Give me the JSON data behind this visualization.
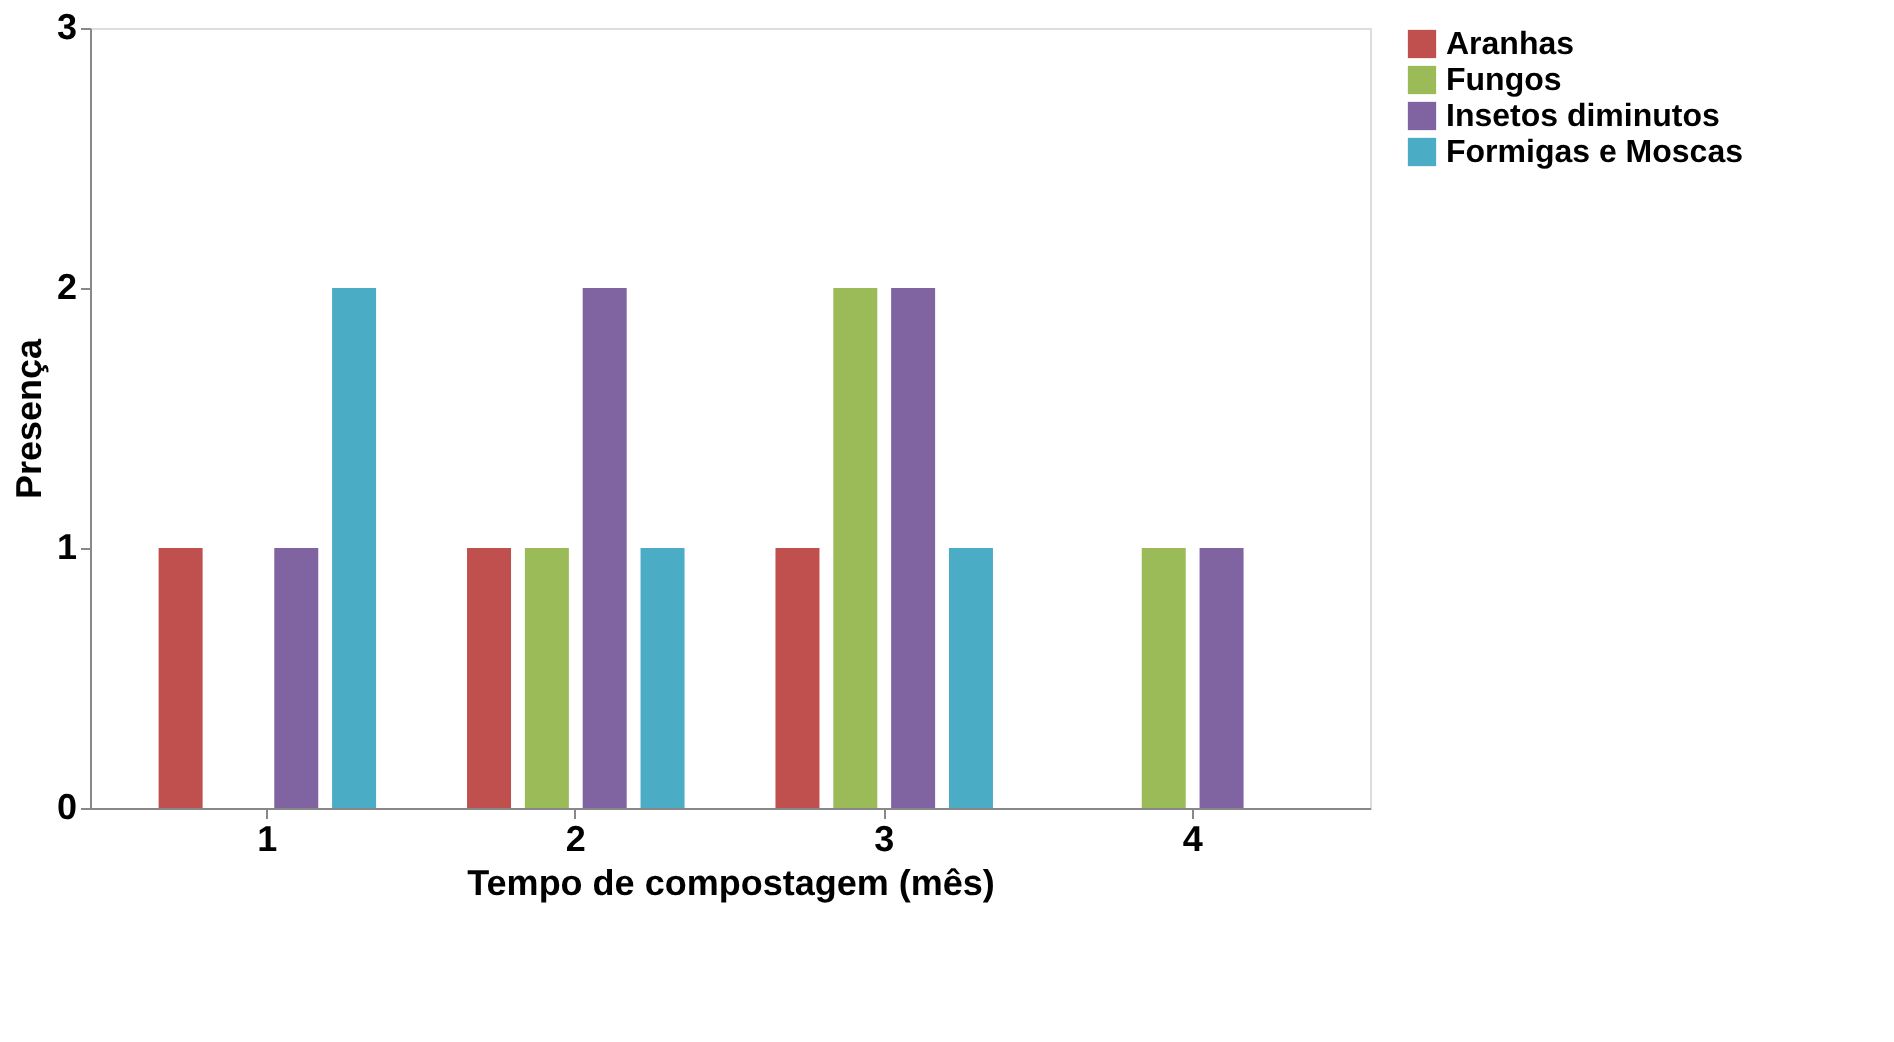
{
  "chart_data": {
    "type": "bar",
    "xlabel": "Tempo de compostagem (mês)",
    "ylabel": "Presença",
    "categories": [
      "1",
      "2",
      "3",
      "4"
    ],
    "series": [
      {
        "name": "Aranhas",
        "color": "#c0504d",
        "values": [
          1,
          1,
          1,
          0
        ]
      },
      {
        "name": "Fungos",
        "color": "#9bbb59",
        "values": [
          0,
          1,
          2,
          1
        ]
      },
      {
        "name": "Insetos diminutos",
        "color": "#8064a2",
        "values": [
          1,
          2,
          2,
          1
        ]
      },
      {
        "name": "Formigas e Moscas",
        "color": "#4bacc6",
        "values": [
          2,
          1,
          1,
          0
        ]
      }
    ],
    "ylim": [
      0,
      3
    ],
    "yticks": [
      0,
      1,
      2,
      3
    ],
    "grid": false,
    "legend": "top right"
  }
}
